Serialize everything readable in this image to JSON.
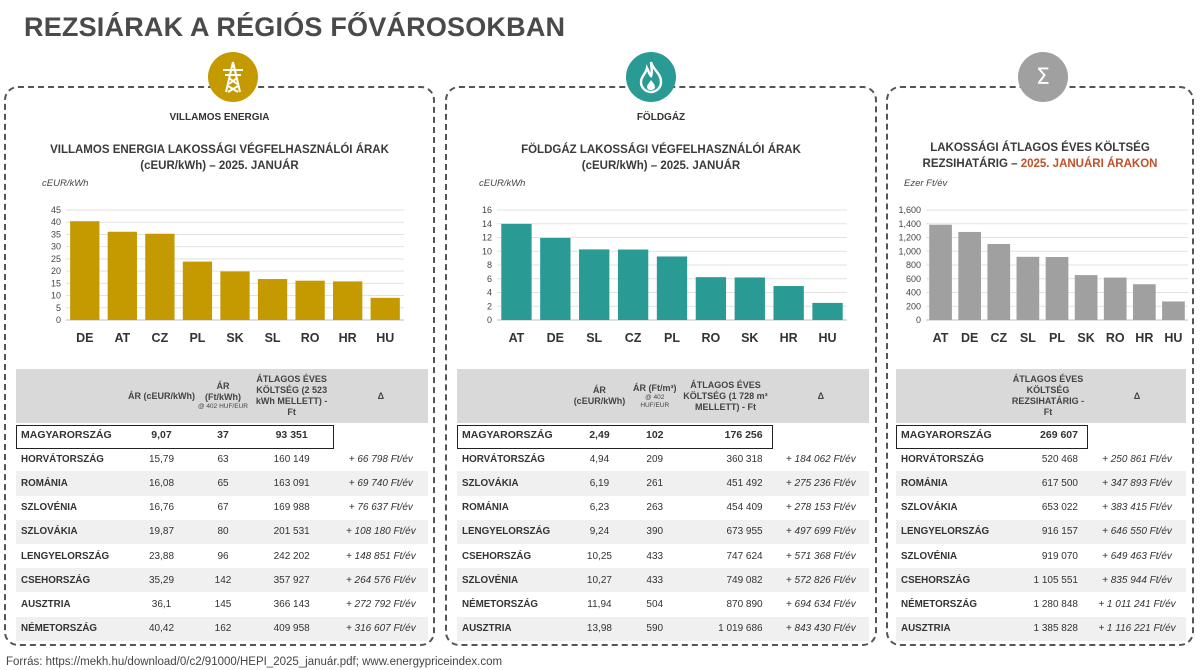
{
  "main_title": "REZSIÁRAK A RÉGIÓS FŐVÁROSOKBAN",
  "footer": "Forrás: https://mekh.hu/download/0/c2/91000/HEPI_2025_január.pdf; www.energypriceindex.com",
  "colors": {
    "electricity": "#c49a00",
    "gas": "#2a9a94",
    "total": "#a0a0a0",
    "delta_orange": "#c0502a",
    "delta_teal": "#2a9a94"
  },
  "panels": [
    {
      "key": "electricity",
      "icon": "power-pylon-icon",
      "category_label": "VILLAMOS ENERGIA",
      "title_line1": "VILLAMOS ENERGIA LAKOSSÁGI VÉGFELHASZNÁLÓI ÁRAK",
      "title_line2": "(cEUR/kWh) – 2025. JANUÁR",
      "unit": "cEUR/kWh",
      "headers": [
        "",
        "ÁR (cEUR/kWh)",
        "ÁR (Ft/kWh)",
        "@ 402 HUF/EUR",
        "ÁTLAGOS ÉVES KÖLTSÉG (2 523 kWh MELLETT) - Ft",
        "Δ"
      ],
      "rows": [
        [
          "MAGYARORSZÁG",
          "9,07",
          "37",
          "93 351",
          ""
        ],
        [
          "HORVÁTORSZÁG",
          "15,79",
          "63",
          "160 149",
          "+ 66 798 Ft/év"
        ],
        [
          "ROMÁNIA",
          "16,08",
          "65",
          "163 091",
          "+ 69 740 Ft/év"
        ],
        [
          "SZLOVÉNIA",
          "16,76",
          "67",
          "169 988",
          "+ 76 637 Ft/év"
        ],
        [
          "SZLOVÁKIA",
          "19,87",
          "80",
          "201 531",
          "+ 108 180 Ft/év"
        ],
        [
          "LENGYELORSZÁG",
          "23,88",
          "96",
          "242 202",
          "+ 148 851 Ft/év"
        ],
        [
          "CSEHORSZÁG",
          "35,29",
          "142",
          "357 927",
          "+ 264 576 Ft/év"
        ],
        [
          "AUSZTRIA",
          "36,1",
          "145",
          "366 143",
          "+ 272 792 Ft/év"
        ],
        [
          "NÉMETORSZÁG",
          "40,42",
          "162",
          "409 958",
          "+ 316 607 Ft/év"
        ]
      ]
    },
    {
      "key": "gas",
      "icon": "flame-icon",
      "category_label": "FÖLDGÁZ",
      "title_line1": "FÖLDGÁZ LAKOSSÁGI VÉGFELHASZNÁLÓI ÁRAK",
      "title_line2": "(cEUR/kWh) – 2025. JANUÁR",
      "unit": "cEUR/kWh",
      "headers": [
        "",
        "ÁR (cEUR/kWh)",
        "ÁR (Ft/m³)",
        "@ 402 HUF/EUR",
        "ÁTLAGOS ÉVES KÖLTSÉG (1 728 m³ MELLETT) - Ft",
        "Δ"
      ],
      "rows": [
        [
          "MAGYARORSZÁG",
          "2,49",
          "102",
          "176 256",
          ""
        ],
        [
          "HORVÁTORSZÁG",
          "4,94",
          "209",
          "360 318",
          "+ 184 062 Ft/év"
        ],
        [
          "SZLOVÁKIA",
          "6,19",
          "261",
          "451 492",
          "+ 275 236 Ft/év"
        ],
        [
          "ROMÁNIA",
          "6,23",
          "263",
          "454 409",
          "+ 278 153 Ft/év"
        ],
        [
          "LENGYELORSZÁG",
          "9,24",
          "390",
          "673 955",
          "+ 497 699 Ft/év"
        ],
        [
          "CSEHORSZÁG",
          "10,25",
          "433",
          "747 624",
          "+ 571 368 Ft/év"
        ],
        [
          "SZLOVÉNIA",
          "10,27",
          "433",
          "749 082",
          "+ 572 826 Ft/év"
        ],
        [
          "NÉMETORSZÁG",
          "11,94",
          "504",
          "870 890",
          "+ 694 634 Ft/év"
        ],
        [
          "AUSZTRIA",
          "13,98",
          "590",
          "1 019 686",
          "+ 843 430 Ft/év"
        ]
      ]
    },
    {
      "key": "total",
      "icon": "sigma-icon",
      "icon_glyph": "Σ",
      "title_line1": "LAKOSSÁGI ÁTLAGOS ÉVES KÖLTSÉG",
      "title_line2_a": "REZSIHATÁRIG – ",
      "title_line2_b": "2025. JANUÁRI ÁRAKON",
      "unit": "Ezer Ft/év",
      "headers": [
        "",
        "ÁTLAGOS ÉVES KÖLTSÉG REZSIHATÁRIG - Ft",
        "Δ"
      ],
      "rows": [
        [
          "MAGYARORSZÁG",
          "269 607",
          ""
        ],
        [
          "HORVÁTORSZÁG",
          "520 468",
          "+ 250 861 Ft/év"
        ],
        [
          "ROMÁNIA",
          "617 500",
          "+ 347 893 Ft/év"
        ],
        [
          "SZLOVÁKIA",
          "653 022",
          "+ 383 415 Ft/év"
        ],
        [
          "LENGYELORSZÁG",
          "916 157",
          "+ 646 550 Ft/év"
        ],
        [
          "SZLOVÉNIA",
          "919 070",
          "+ 649 463 Ft/év"
        ],
        [
          "CSEHORSZÁG",
          "1 105 551",
          "+ 835 944 Ft/év"
        ],
        [
          "NÉMETORSZÁG",
          "1 280 848",
          "+ 1 011 241 Ft/év"
        ],
        [
          "AUSZTRIA",
          "1 385 828",
          "+ 1 116 221 Ft/év"
        ]
      ]
    }
  ],
  "chart_data": [
    {
      "type": "bar",
      "categories": [
        "DE",
        "AT",
        "CZ",
        "PL",
        "SK",
        "SL",
        "RO",
        "HR",
        "HU"
      ],
      "values": [
        40.42,
        36.1,
        35.29,
        23.88,
        19.87,
        16.76,
        16.08,
        15.79,
        9.07
      ],
      "ylim": [
        0,
        45
      ],
      "yticks": [
        0,
        5,
        10,
        15,
        20,
        25,
        30,
        35,
        40,
        45
      ],
      "ylabel": "cEUR/kWh",
      "grid": true
    },
    {
      "type": "bar",
      "categories": [
        "AT",
        "DE",
        "SL",
        "CZ",
        "PL",
        "RO",
        "SK",
        "HR",
        "HU"
      ],
      "values": [
        13.98,
        11.94,
        10.27,
        10.25,
        9.24,
        6.23,
        6.19,
        4.94,
        2.49
      ],
      "ylim": [
        0,
        16
      ],
      "yticks": [
        0,
        2,
        4,
        6,
        8,
        10,
        12,
        14,
        16
      ],
      "ylabel": "cEUR/kWh",
      "grid": true
    },
    {
      "type": "bar",
      "categories": [
        "AT",
        "DE",
        "CZ",
        "SL",
        "PL",
        "SK",
        "RO",
        "HR",
        "HU"
      ],
      "values": [
        1385.8,
        1280.8,
        1105.6,
        919.1,
        916.2,
        653.0,
        617.5,
        520.5,
        269.6
      ],
      "ylim": [
        0,
        1600
      ],
      "yticks": [
        0,
        200,
        400,
        600,
        800,
        1000,
        1200,
        1400,
        1600
      ],
      "ytick_labels": [
        "0",
        "200",
        "400",
        "600",
        "800",
        "1,000",
        "1,200",
        "1,400",
        "1,600"
      ],
      "ylabel": "Ezer Ft/év",
      "grid": true
    }
  ]
}
